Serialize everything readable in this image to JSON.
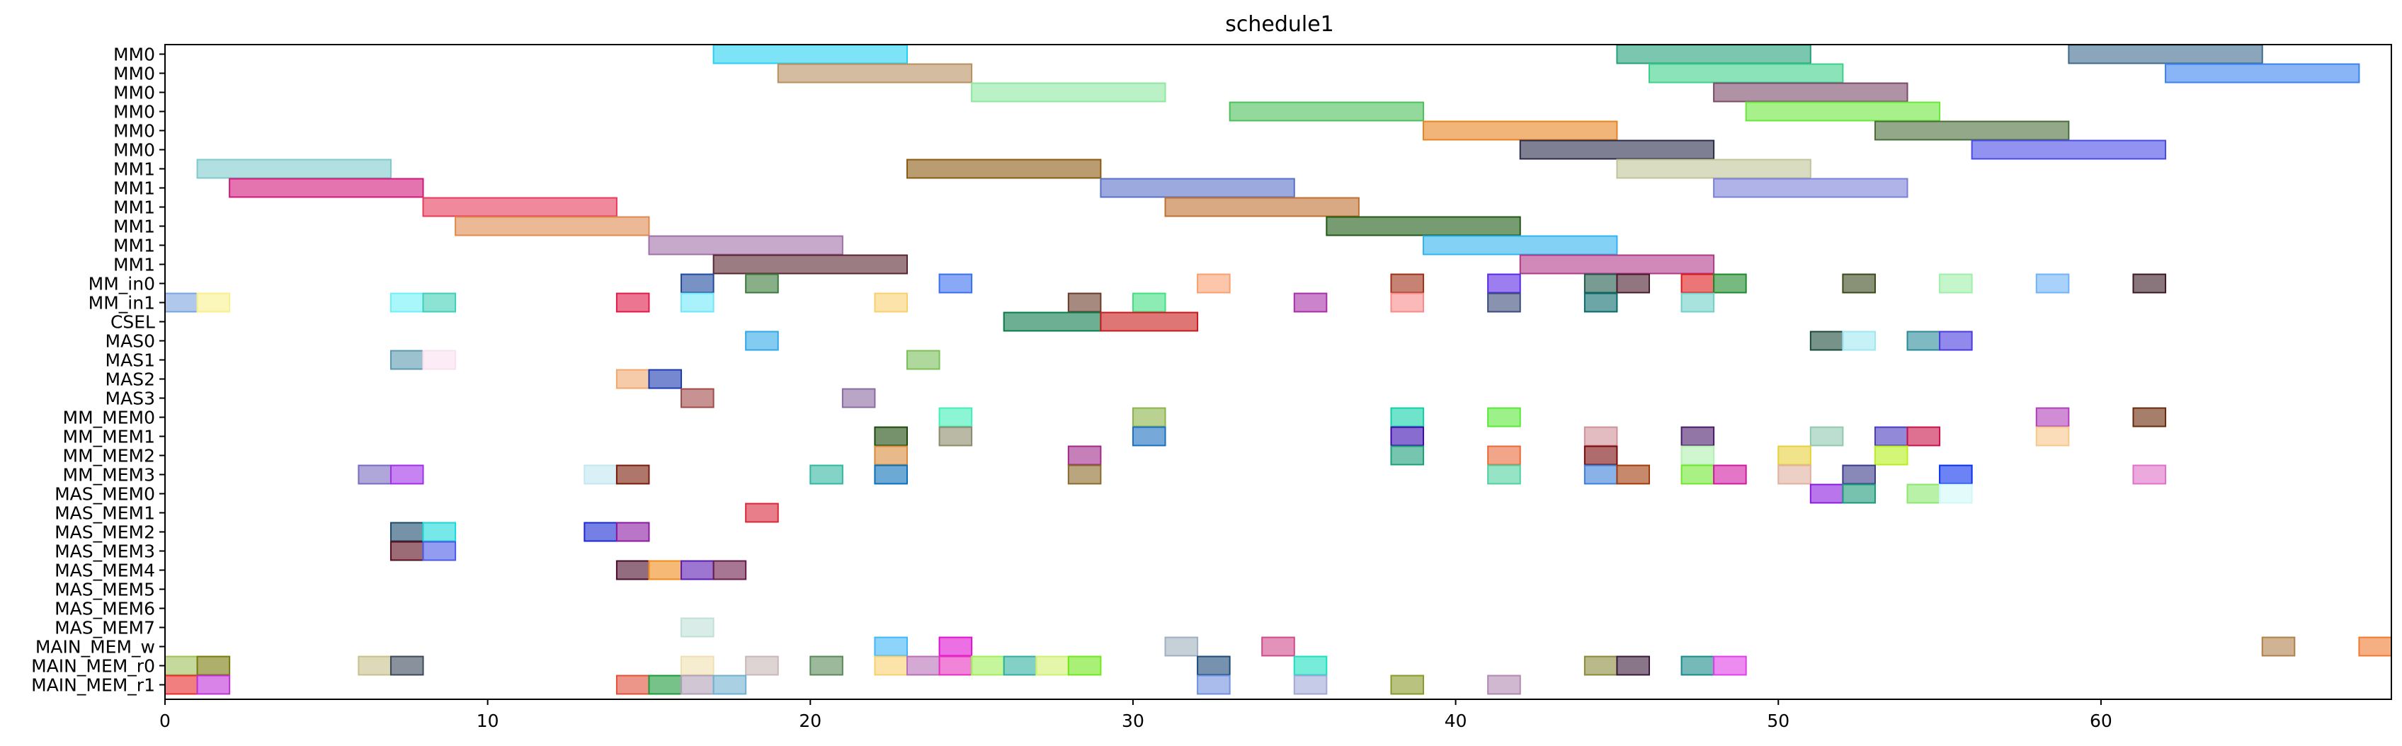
{
  "chart_data": {
    "type": "gantt",
    "title": "schedule1",
    "xlabel": "",
    "ylabel": "",
    "xlim": [
      0,
      69
    ],
    "x_ticks": [
      0,
      10,
      20,
      30,
      40,
      50,
      60
    ],
    "grid": false,
    "rows": [
      "MM0",
      "MM0",
      "MM0",
      "MM0",
      "MM0",
      "MM0",
      "MM1",
      "MM1",
      "MM1",
      "MM1",
      "MM1",
      "MM1",
      "MM_in0",
      "MM_in1",
      "CSEL",
      "MAS0",
      "MAS1",
      "MAS2",
      "MAS3",
      "MM_MEM0",
      "MM_MEM1",
      "MM_MEM2",
      "MM_MEM3",
      "MAS_MEM0",
      "MAS_MEM1",
      "MAS_MEM2",
      "MAS_MEM3",
      "MAS_MEM4",
      "MAS_MEM5",
      "MAS_MEM6",
      "MAS_MEM7",
      "MAIN_MEM_w",
      "MAIN_MEM_r0",
      "MAIN_MEM_r1"
    ],
    "tasks": [
      {
        "row": 0,
        "start": 17,
        "end": 23,
        "color": "#26d0f0"
      },
      {
        "row": 0,
        "start": 45,
        "end": 51,
        "color": "#23a07a"
      },
      {
        "row": 0,
        "start": 59,
        "end": 65,
        "color": "#3d6a8c"
      },
      {
        "row": 1,
        "start": 19,
        "end": 25,
        "color": "#b89060"
      },
      {
        "row": 1,
        "start": 46,
        "end": 52,
        "color": "#3dd08a"
      },
      {
        "row": 1,
        "start": 62,
        "end": 68,
        "color": "#3b82f0"
      },
      {
        "row": 2,
        "start": 25,
        "end": 31,
        "color": "#8ee8a0"
      },
      {
        "row": 2,
        "start": 48,
        "end": 54,
        "color": "#7a4a68"
      },
      {
        "row": 3,
        "start": 33,
        "end": 39,
        "color": "#4cc05a"
      },
      {
        "row": 3,
        "start": 49,
        "end": 55,
        "color": "#6ae83a"
      },
      {
        "row": 4,
        "start": 39,
        "end": 45,
        "color": "#e88420"
      },
      {
        "row": 4,
        "start": 53,
        "end": 59,
        "color": "#4a6e3a"
      },
      {
        "row": 5,
        "start": 42,
        "end": 48,
        "color": "#2a2a4a"
      },
      {
        "row": 5,
        "start": 56,
        "end": 62,
        "color": "#4a4ae8"
      },
      {
        "row": 6,
        "start": 1,
        "end": 7,
        "color": "#7ecaca"
      },
      {
        "row": 6,
        "start": 23,
        "end": 29,
        "color": "#8a5a10"
      },
      {
        "row": 6,
        "start": 45,
        "end": 51,
        "color": "#c0c498"
      },
      {
        "row": 7,
        "start": 2,
        "end": 8,
        "color": "#d0187a"
      },
      {
        "row": 7,
        "start": 29,
        "end": 35,
        "color": "#5a70c8"
      },
      {
        "row": 7,
        "start": 48,
        "end": 54,
        "color": "#7a80d8"
      },
      {
        "row": 8,
        "start": 8,
        "end": 14,
        "color": "#e83a5a"
      },
      {
        "row": 8,
        "start": 31,
        "end": 37,
        "color": "#c07030"
      },
      {
        "row": 9,
        "start": 9,
        "end": 15,
        "color": "#e08a50"
      },
      {
        "row": 9,
        "start": 36,
        "end": 42,
        "color": "#1e5a12"
      },
      {
        "row": 10,
        "start": 15,
        "end": 21,
        "color": "#a070a8"
      },
      {
        "row": 10,
        "start": 39,
        "end": 45,
        "color": "#30b4f0"
      },
      {
        "row": 11,
        "start": 17,
        "end": 23,
        "color": "#5a2430"
      },
      {
        "row": 11,
        "start": 42,
        "end": 48,
        "color": "#b03a8a"
      },
      {
        "row": 12,
        "start": 16,
        "end": 17,
        "color": "#1e4aa0"
      },
      {
        "row": 12,
        "start": 18,
        "end": 19,
        "color": "#3a7a3a"
      },
      {
        "row": 12,
        "start": 24,
        "end": 25,
        "color": "#3a70f0"
      },
      {
        "row": 12,
        "start": 32,
        "end": 33,
        "color": "#f8a070"
      },
      {
        "row": 12,
        "start": 38,
        "end": 39,
        "color": "#a03018"
      },
      {
        "row": 12,
        "start": 41,
        "end": 42,
        "color": "#5a28e8"
      },
      {
        "row": 12,
        "start": 44,
        "end": 45,
        "color": "#1e5a4a"
      },
      {
        "row": 12,
        "start": 45,
        "end": 46,
        "color": "#4a1a2a"
      },
      {
        "row": 12,
        "start": 47,
        "end": 48,
        "color": "#e01a1a"
      },
      {
        "row": 12,
        "start": 48,
        "end": 49,
        "color": "#1e8a2a"
      },
      {
        "row": 12,
        "start": 52,
        "end": 53,
        "color": "#3a4a1a"
      },
      {
        "row": 12,
        "start": 55,
        "end": 56,
        "color": "#9ef0a8"
      },
      {
        "row": 12,
        "start": 58,
        "end": 59,
        "color": "#70b4f8"
      },
      {
        "row": 12,
        "start": 61,
        "end": 62,
        "color": "#3a1a24"
      },
      {
        "row": 13,
        "start": 0,
        "end": 1,
        "color": "#7aa4e0"
      },
      {
        "row": 13,
        "start": 1,
        "end": 2,
        "color": "#f8f08a"
      },
      {
        "row": 13,
        "start": 7,
        "end": 8,
        "color": "#70f0f8"
      },
      {
        "row": 13,
        "start": 8,
        "end": 9,
        "color": "#40d0b8"
      },
      {
        "row": 13,
        "start": 14,
        "end": 15,
        "color": "#e01a4a"
      },
      {
        "row": 13,
        "start": 16,
        "end": 17,
        "color": "#70e8f8"
      },
      {
        "row": 13,
        "start": 22,
        "end": 23,
        "color": "#f8d070"
      },
      {
        "row": 13,
        "start": 28,
        "end": 29,
        "color": "#6a3a2a"
      },
      {
        "row": 13,
        "start": 30,
        "end": 31,
        "color": "#40e080"
      },
      {
        "row": 13,
        "start": 35,
        "end": 36,
        "color": "#a830a8"
      },
      {
        "row": 13,
        "start": 38,
        "end": 39,
        "color": "#f88a8a"
      },
      {
        "row": 13,
        "start": 41,
        "end": 42,
        "color": "#3a4a7a"
      },
      {
        "row": 13,
        "start": 44,
        "end": 45,
        "color": "#0a6a6a"
      },
      {
        "row": 13,
        "start": 47,
        "end": 48,
        "color": "#70d0c8"
      },
      {
        "row": 14,
        "start": 26,
        "end": 29,
        "color": "#0a7a4a"
      },
      {
        "row": 14,
        "start": 29,
        "end": 32,
        "color": "#c81a1a"
      },
      {
        "row": 15,
        "start": 18,
        "end": 19,
        "color": "#30a8e8"
      },
      {
        "row": 15,
        "start": 51,
        "end": 52,
        "color": "#1a4a3a"
      },
      {
        "row": 15,
        "start": 52,
        "end": 53,
        "color": "#a0e8f0"
      },
      {
        "row": 15,
        "start": 54,
        "end": 55,
        "color": "#2a8a9a"
      },
      {
        "row": 15,
        "start": 55,
        "end": 56,
        "color": "#4a3ae0"
      },
      {
        "row": 16,
        "start": 7,
        "end": 8,
        "color": "#5a9ab0"
      },
      {
        "row": 16,
        "start": 8,
        "end": 9,
        "color": "#f8e0f0"
      },
      {
        "row": 16,
        "start": 23,
        "end": 24,
        "color": "#7ac05a"
      },
      {
        "row": 17,
        "start": 14,
        "end": 15,
        "color": "#f0a870"
      },
      {
        "row": 17,
        "start": 15,
        "end": 16,
        "color": "#1a3ab0"
      },
      {
        "row": 18,
        "start": 16,
        "end": 17,
        "color": "#a04a4a"
      },
      {
        "row": 18,
        "start": 21,
        "end": 22,
        "color": "#8a6aa0"
      },
      {
        "row": 19,
        "start": 24,
        "end": 25,
        "color": "#40f0b8"
      },
      {
        "row": 19,
        "start": 30,
        "end": 31,
        "color": "#8ab44a"
      },
      {
        "row": 19,
        "start": 38,
        "end": 39,
        "color": "#10d0a8"
      },
      {
        "row": 19,
        "start": 41,
        "end": 42,
        "color": "#5ae83a"
      },
      {
        "row": 19,
        "start": 58,
        "end": 59,
        "color": "#b040b8"
      },
      {
        "row": 19,
        "start": 61,
        "end": 62,
        "color": "#6a2a0a"
      },
      {
        "row": 20,
        "start": 22,
        "end": 23,
        "color": "#1a4a0a"
      },
      {
        "row": 20,
        "start": 24,
        "end": 25,
        "color": "#8a8a6a"
      },
      {
        "row": 20,
        "start": 30,
        "end": 31,
        "color": "#1a70c0"
      },
      {
        "row": 20,
        "start": 38,
        "end": 39,
        "color": "#3a0ab0"
      },
      {
        "row": 20,
        "start": 44,
        "end": 45,
        "color": "#d0909a"
      },
      {
        "row": 20,
        "start": 47,
        "end": 48,
        "color": "#4a1a6a"
      },
      {
        "row": 20,
        "start": 51,
        "end": 52,
        "color": "#90c8b0"
      },
      {
        "row": 20,
        "start": 53,
        "end": 54,
        "color": "#4a3ac0"
      },
      {
        "row": 20,
        "start": 54,
        "end": 55,
        "color": "#c8104a"
      },
      {
        "row": 20,
        "start": 58,
        "end": 59,
        "color": "#f8c88a"
      },
      {
        "row": 21,
        "start": 22,
        "end": 23,
        "color": "#d88a3a"
      },
      {
        "row": 21,
        "start": 28,
        "end": 29,
        "color": "#a02a8a"
      },
      {
        "row": 21,
        "start": 38,
        "end": 39,
        "color": "#1aa07a"
      },
      {
        "row": 21,
        "start": 41,
        "end": 42,
        "color": "#e86a3a"
      },
      {
        "row": 21,
        "start": 44,
        "end": 45,
        "color": "#7a0a0a"
      },
      {
        "row": 21,
        "start": 47,
        "end": 48,
        "color": "#b0f0b0"
      },
      {
        "row": 21,
        "start": 50,
        "end": 51,
        "color": "#e8d03a"
      },
      {
        "row": 21,
        "start": 53,
        "end": 54,
        "color": "#b8f01a"
      },
      {
        "row": 22,
        "start": 6,
        "end": 7,
        "color": "#7a6ac0"
      },
      {
        "row": 22,
        "start": 7,
        "end": 8,
        "color": "#a030e8"
      },
      {
        "row": 22,
        "start": 13,
        "end": 14,
        "color": "#c0e8f0"
      },
      {
        "row": 22,
        "start": 14,
        "end": 15,
        "color": "#7a1a0a"
      },
      {
        "row": 22,
        "start": 20,
        "end": 21,
        "color": "#30b8a0"
      },
      {
        "row": 22,
        "start": 22,
        "end": 23,
        "color": "#0a70b8"
      },
      {
        "row": 22,
        "start": 28,
        "end": 29,
        "color": "#8a6a2a"
      },
      {
        "row": 22,
        "start": 41,
        "end": 42,
        "color": "#50d0a0"
      },
      {
        "row": 22,
        "start": 44,
        "end": 45,
        "color": "#3a80d8"
      },
      {
        "row": 22,
        "start": 45,
        "end": 46,
        "color": "#a03a0a"
      },
      {
        "row": 22,
        "start": 47,
        "end": 48,
        "color": "#70e830"
      },
      {
        "row": 22,
        "start": 48,
        "end": 49,
        "color": "#d01aa0"
      },
      {
        "row": 22,
        "start": 50,
        "end": 51,
        "color": "#e0b0a0"
      },
      {
        "row": 22,
        "start": 52,
        "end": 53,
        "color": "#3a3a8a"
      },
      {
        "row": 22,
        "start": 55,
        "end": 56,
        "color": "#0a30f0"
      },
      {
        "row": 22,
        "start": 61,
        "end": 62,
        "color": "#e070c8"
      },
      {
        "row": 23,
        "start": 51,
        "end": 52,
        "color": "#8a1ae0"
      },
      {
        "row": 23,
        "start": 52,
        "end": 53,
        "color": "#1a9a7a"
      },
      {
        "row": 23,
        "start": 54,
        "end": 55,
        "color": "#8ae870"
      },
      {
        "row": 23,
        "start": 55,
        "end": 56,
        "color": "#d0f8f8"
      },
      {
        "row": 24,
        "start": 18,
        "end": 19,
        "color": "#d8283a"
      },
      {
        "row": 25,
        "start": 7,
        "end": 8,
        "color": "#1a4a6a"
      },
      {
        "row": 25,
        "start": 8,
        "end": 9,
        "color": "#1ad8d8"
      },
      {
        "row": 25,
        "start": 13,
        "end": 14,
        "color": "#1a2ad0"
      },
      {
        "row": 25,
        "start": 14,
        "end": 15,
        "color": "#8a1aa0"
      },
      {
        "row": 26,
        "start": 7,
        "end": 8,
        "color": "#5a0a1a"
      },
      {
        "row": 26,
        "start": 8,
        "end": 9,
        "color": "#4a5ae8"
      },
      {
        "row": 27,
        "start": 14,
        "end": 15,
        "color": "#4a0a2a"
      },
      {
        "row": 27,
        "start": 15,
        "end": 16,
        "color": "#f08a1a"
      },
      {
        "row": 27,
        "start": 16,
        "end": 17,
        "color": "#5a1ab0"
      },
      {
        "row": 27,
        "start": 17,
        "end": 18,
        "color": "#6a1a4a"
      },
      {
        "row": 30,
        "start": 16,
        "end": 17,
        "color": "#c0e0d8"
      },
      {
        "row": 31,
        "start": 22,
        "end": 23,
        "color": "#40b8f8"
      },
      {
        "row": 31,
        "start": 24,
        "end": 25,
        "color": "#e010d0"
      },
      {
        "row": 31,
        "start": 31,
        "end": 32,
        "color": "#a0b0c0"
      },
      {
        "row": 31,
        "start": 34,
        "end": 35,
        "color": "#d04a8a"
      },
      {
        "row": 31,
        "start": 65,
        "end": 66,
        "color": "#b0804a"
      },
      {
        "row": 31,
        "start": 68,
        "end": 69,
        "color": "#f07a30"
      },
      {
        "row": 32,
        "start": 0,
        "end": 1,
        "color": "#a0c05a"
      },
      {
        "row": 32,
        "start": 1,
        "end": 2,
        "color": "#7a7a0a"
      },
      {
        "row": 32,
        "start": 6,
        "end": 7,
        "color": "#c8c08a"
      },
      {
        "row": 32,
        "start": 7,
        "end": 8,
        "color": "#3a4a5a"
      },
      {
        "row": 32,
        "start": 16,
        "end": 17,
        "color": "#f0e0b0"
      },
      {
        "row": 32,
        "start": 18,
        "end": 19,
        "color": "#c8b8b8"
      },
      {
        "row": 32,
        "start": 20,
        "end": 21,
        "color": "#5a8a5a"
      },
      {
        "row": 32,
        "start": 22,
        "end": 23,
        "color": "#f8d070"
      },
      {
        "row": 32,
        "start": 23,
        "end": 24,
        "color": "#b870b8"
      },
      {
        "row": 32,
        "start": 24,
        "end": 25,
        "color": "#e830c0"
      },
      {
        "row": 32,
        "start": 25,
        "end": 26,
        "color": "#a0f05a"
      },
      {
        "row": 32,
        "start": 26,
        "end": 27,
        "color": "#30b0a0"
      },
      {
        "row": 32,
        "start": 27,
        "end": 28,
        "color": "#d0f070"
      },
      {
        "row": 32,
        "start": 28,
        "end": 29,
        "color": "#70e81a"
      },
      {
        "row": 32,
        "start": 32,
        "end": 33,
        "color": "#1a4a7a"
      },
      {
        "row": 32,
        "start": 35,
        "end": 36,
        "color": "#1ae0c0"
      },
      {
        "row": 32,
        "start": 44,
        "end": 45,
        "color": "#8a8a3a"
      },
      {
        "row": 32,
        "start": 45,
        "end": 46,
        "color": "#3a1a3a"
      },
      {
        "row": 32,
        "start": 47,
        "end": 48,
        "color": "#1a8a8a"
      },
      {
        "row": 32,
        "start": 48,
        "end": 49,
        "color": "#e040e8"
      },
      {
        "row": 33,
        "start": 0,
        "end": 1,
        "color": "#e82a2a"
      },
      {
        "row": 33,
        "start": 1,
        "end": 2,
        "color": "#c030d8"
      },
      {
        "row": 33,
        "start": 14,
        "end": 15,
        "color": "#e0503a"
      },
      {
        "row": 33,
        "start": 15,
        "end": 16,
        "color": "#1a9a3a"
      },
      {
        "row": 33,
        "start": 16,
        "end": 17,
        "color": "#b0a0b8"
      },
      {
        "row": 33,
        "start": 17,
        "end": 18,
        "color": "#70b0d0"
      },
      {
        "row": 33,
        "start": 32,
        "end": 33,
        "color": "#7090e0"
      },
      {
        "row": 33,
        "start": 35,
        "end": 36,
        "color": "#a0a8d8"
      },
      {
        "row": 33,
        "start": 38,
        "end": 39,
        "color": "#8a9a2a"
      },
      {
        "row": 33,
        "start": 41,
        "end": 42,
        "color": "#b088b0"
      }
    ]
  }
}
